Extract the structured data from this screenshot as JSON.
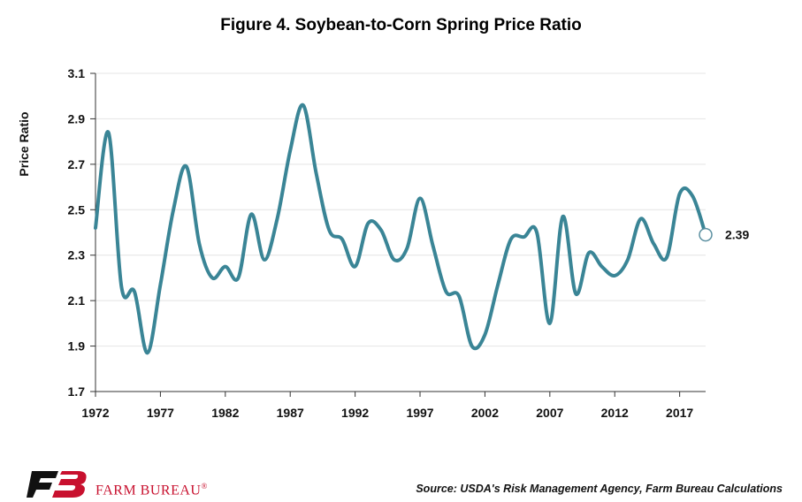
{
  "title": "Figure 4. Soybean-to-Corn Spring Price Ratio",
  "source": "Source: USDA's Risk Management Agency, Farm Bureau Calculations",
  "logo": {
    "text": "FARM BUREAU",
    "mark": "®",
    "color": "#c8102e"
  },
  "colors": {
    "line": "#3a8596",
    "grid": "#e4e4e4",
    "axis": "#333333"
  },
  "chart_data": {
    "type": "line",
    "title": "Figure 4. Soybean-to-Corn Spring Price Ratio",
    "xlabel": "",
    "ylabel": "Price Ratio",
    "ylim": [
      1.7,
      3.1
    ],
    "xlim": [
      1972,
      2019
    ],
    "yticks": [
      "1.7",
      "1.9",
      "2.1",
      "2.3",
      "2.5",
      "2.7",
      "2.9",
      "3.1"
    ],
    "xticks": [
      "1972",
      "1977",
      "1982",
      "1987",
      "1992",
      "1997",
      "2002",
      "2007",
      "2012",
      "2017"
    ],
    "grid": "horizontal",
    "series": [
      {
        "x": [
          1972,
          1973,
          1974,
          1975,
          1976,
          1977,
          1978,
          1979,
          1980,
          1981,
          1982,
          1983,
          1984,
          1985,
          1986,
          1987,
          1988,
          1989,
          1990,
          1991,
          1992,
          1993,
          1994,
          1995,
          1996,
          1997,
          1998,
          1999,
          2000,
          2001,
          2002,
          2003,
          2004,
          2005,
          2006,
          2007,
          2008,
          2009,
          2010,
          2011,
          2012,
          2013,
          2014,
          2015,
          2016,
          2017,
          2018,
          2019
        ],
        "values": [
          2.42,
          2.84,
          2.16,
          2.14,
          1.87,
          2.17,
          2.5,
          2.69,
          2.35,
          2.2,
          2.25,
          2.2,
          2.48,
          2.28,
          2.46,
          2.76,
          2.96,
          2.66,
          2.41,
          2.37,
          2.25,
          2.44,
          2.41,
          2.28,
          2.33,
          2.55,
          2.34,
          2.14,
          2.12,
          1.9,
          1.95,
          2.17,
          2.37,
          2.38,
          2.4,
          2.0,
          2.47,
          2.13,
          2.31,
          2.25,
          2.21,
          2.28,
          2.46,
          2.35,
          2.29,
          2.57,
          2.56,
          2.39
        ]
      }
    ],
    "annotations": [
      {
        "x": 2019,
        "y": 2.39,
        "label": "2.39"
      }
    ]
  }
}
